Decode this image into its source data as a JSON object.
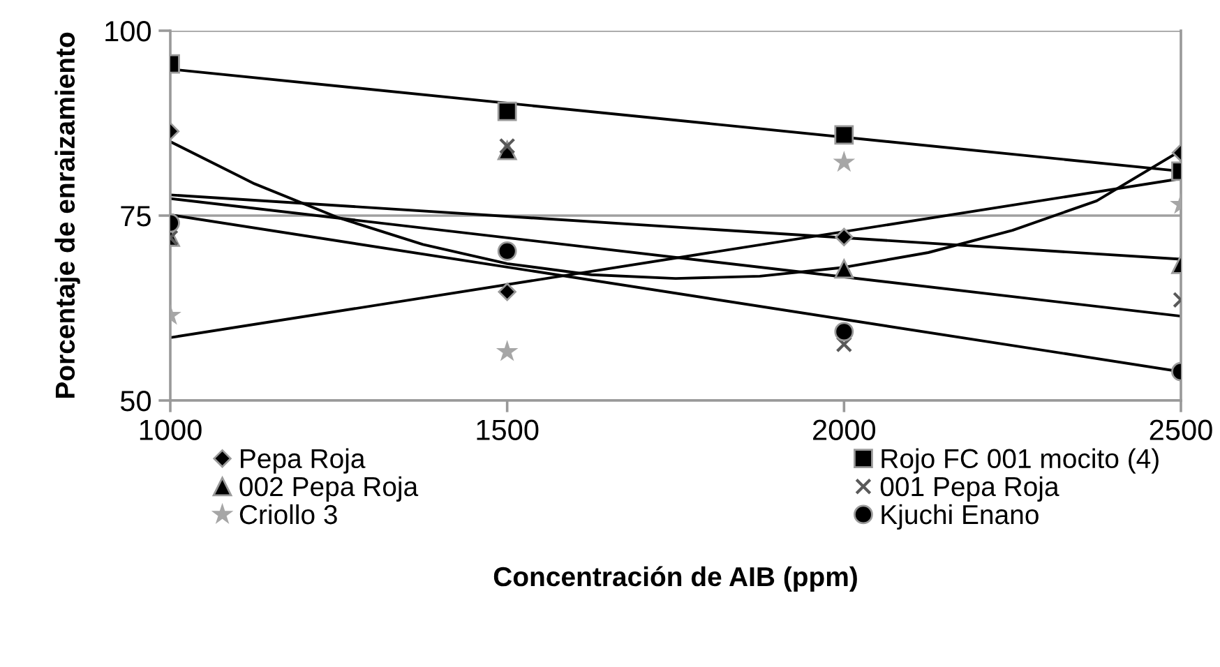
{
  "chart_data": {
    "type": "scatter",
    "xlabel": "Concentración de AIB (ppm)",
    "ylabel": "Porcentaje de enraizamiento",
    "x": [
      1000,
      1500,
      2000,
      2500
    ],
    "xlim": [
      1000,
      2500
    ],
    "xticks": [
      1000,
      1500,
      2000,
      2500
    ],
    "ylim": [
      50,
      100
    ],
    "yticks": [
      50,
      75,
      100
    ],
    "grid": "y",
    "legend": "bottom",
    "series": [
      {
        "name": "Pepa Roja",
        "color": "#000000",
        "marker": "diamond",
        "values": [
          86.4,
          64.7,
          72.1,
          83.5
        ]
      },
      {
        "name": "Rojo FC 001 mocito (4)",
        "color": "#000000",
        "marker": "square",
        "values": [
          95.5,
          89.1,
          85.9,
          81.0
        ]
      },
      {
        "name": "002 Pepa Roja",
        "color": "#000000",
        "marker": "triangle",
        "values": [
          72.1,
          83.8,
          67.8,
          68.4
        ]
      },
      {
        "name": "001 Pepa Roja",
        "color": "#595959",
        "marker": "cross",
        "values": [
          72.0,
          84.4,
          57.6,
          63.6
        ]
      },
      {
        "name": "Criollo 3",
        "color": "#a6a6a6",
        "marker": "star",
        "values": [
          61.5,
          56.6,
          82.2,
          76.5
        ]
      },
      {
        "name": "Kjuchi Enano",
        "color": "#000000",
        "marker": "circle",
        "values": [
          74.0,
          70.2,
          59.3,
          53.9
        ]
      },
      {
        "type": "line",
        "color": "#000000",
        "marker": "none",
        "x": [
          1000,
          1125,
          1250,
          1375,
          1500,
          1625,
          1750,
          1875,
          2000,
          2125,
          2250,
          2375,
          2500
        ],
        "values": [
          85.0,
          79.3,
          74.7,
          71.1,
          68.5,
          67.0,
          66.5,
          66.8,
          68.0,
          70.0,
          73.0,
          77.0,
          83.8
        ]
      },
      {
        "type": "line",
        "color": "#000000",
        "marker": "none",
        "x": [
          1000,
          2500
        ],
        "values": [
          94.8,
          81.0
        ]
      },
      {
        "type": "line",
        "color": "#000000",
        "marker": "none",
        "x": [
          1000,
          2500
        ],
        "values": [
          77.8,
          69.1
        ]
      },
      {
        "type": "line",
        "color": "#000000",
        "marker": "none",
        "x": [
          1000,
          2500
        ],
        "values": [
          77.3,
          61.4
        ]
      },
      {
        "type": "line",
        "color": "#000000",
        "marker": "none",
        "x": [
          1000,
          2500
        ],
        "values": [
          58.5,
          80.0
        ]
      },
      {
        "type": "line",
        "color": "#000000",
        "marker": "none",
        "x": [
          1000,
          2500
        ],
        "values": [
          75.1,
          53.9
        ]
      }
    ]
  }
}
